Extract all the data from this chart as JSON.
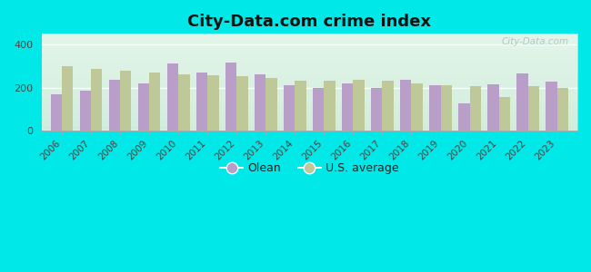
{
  "title": "City-Data.com crime index",
  "years": [
    2006,
    2007,
    2008,
    2009,
    2010,
    2011,
    2012,
    2013,
    2014,
    2015,
    2016,
    2017,
    2018,
    2019,
    2020,
    2021,
    2022,
    2023
  ],
  "olean": [
    170,
    185,
    235,
    220,
    310,
    270,
    315,
    260,
    210,
    198,
    220,
    200,
    235,
    210,
    125,
    215,
    265,
    228
  ],
  "us_avg": [
    298,
    288,
    278,
    268,
    262,
    258,
    252,
    245,
    232,
    233,
    235,
    233,
    220,
    212,
    207,
    157,
    205,
    200
  ],
  "olean_color": "#b89ec8",
  "us_avg_color": "#bec898",
  "bg_outer": "#00e8e8",
  "plot_bg": "#ddf0e4",
  "ylim": [
    0,
    450
  ],
  "yticks": [
    0,
    200,
    400
  ],
  "bar_width": 0.38,
  "legend_olean": "Olean",
  "legend_us": "U.S. average",
  "watermark": "City-Data.com",
  "title_fontsize": 13,
  "tick_fontsize": 7.5,
  "legend_fontsize": 9
}
